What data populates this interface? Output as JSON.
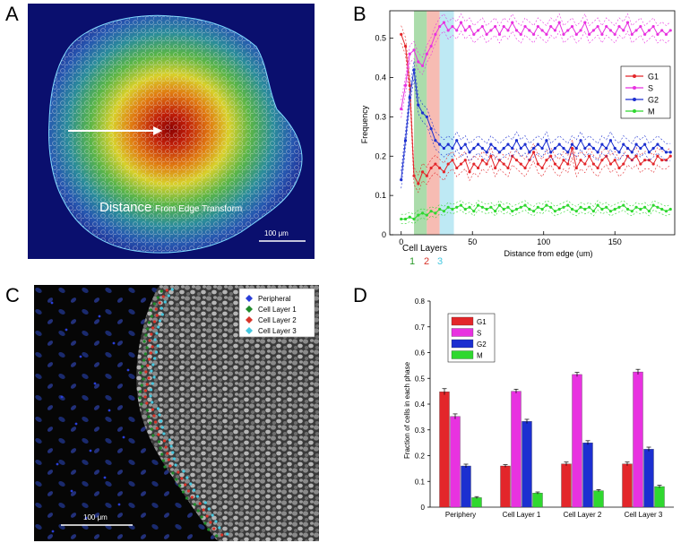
{
  "panels": {
    "a": "A",
    "b": "B",
    "c": "C",
    "d": "D"
  },
  "panel_a": {
    "label_big": "Distance",
    "label_small": " From Edge Transform",
    "scale_bar": "100 μm"
  },
  "panel_c": {
    "scale_bar": "100 μm",
    "legend": [
      {
        "label": "Peripheral",
        "color": "#2a3ed8"
      },
      {
        "label": "Cell Layer 1",
        "color": "#1f8a2a"
      },
      {
        "label": "Cell Layer 2",
        "color": "#d8342a"
      },
      {
        "label": "Cell Layer 3",
        "color": "#45c8e0"
      }
    ]
  },
  "colors": {
    "G1": "#e3262a",
    "S": "#e832e0",
    "G2": "#1c2fd0",
    "M": "#2fd82f"
  },
  "chart_data": [
    {
      "id": "B",
      "type": "line",
      "xlabel": "Distance from edge (um)",
      "ylabel": "Frequency",
      "xlim": [
        -8,
        192
      ],
      "ylim": [
        0,
        0.57
      ],
      "xticks": [
        "0",
        "50",
        "100",
        "150"
      ],
      "yticks": [
        "0",
        "0.1",
        "0.2",
        "0.3",
        "0.4",
        "0.5"
      ],
      "cell_layers_label": "Cell Layers",
      "cell_layer_numbers": [
        "1",
        "2",
        "3"
      ],
      "bands": [
        {
          "x0": 9,
          "x1": 18,
          "color": "#8fd08f"
        },
        {
          "x0": 18,
          "x1": 27,
          "color": "#f4a59a"
        },
        {
          "x0": 27,
          "x1": 37,
          "color": "#a8e2f0"
        }
      ],
      "x": [
        0,
        3,
        6,
        9,
        12,
        15,
        18,
        21,
        24,
        27,
        30,
        33,
        36,
        39,
        42,
        45,
        48,
        51,
        54,
        57,
        60,
        63,
        66,
        69,
        72,
        75,
        78,
        81,
        84,
        87,
        90,
        93,
        96,
        99,
        102,
        105,
        108,
        111,
        114,
        117,
        120,
        123,
        126,
        129,
        132,
        135,
        138,
        141,
        144,
        147,
        150,
        153,
        156,
        159,
        162,
        165,
        168,
        171,
        174,
        177,
        180,
        183,
        186,
        189
      ],
      "series": [
        {
          "name": "G1",
          "values": [
            0.51,
            0.48,
            0.38,
            0.15,
            0.13,
            0.16,
            0.15,
            0.17,
            0.18,
            0.17,
            0.16,
            0.18,
            0.19,
            0.17,
            0.18,
            0.19,
            0.16,
            0.18,
            0.17,
            0.19,
            0.18,
            0.2,
            0.17,
            0.19,
            0.18,
            0.17,
            0.2,
            0.19,
            0.18,
            0.17,
            0.19,
            0.21,
            0.18,
            0.17,
            0.19,
            0.2,
            0.18,
            0.17,
            0.19,
            0.18,
            0.22,
            0.17,
            0.19,
            0.18,
            0.2,
            0.18,
            0.17,
            0.19,
            0.2,
            0.18,
            0.19,
            0.17,
            0.18,
            0.2,
            0.19,
            0.2,
            0.18,
            0.19,
            0.19,
            0.18,
            0.2,
            0.19,
            0.19,
            0.2
          ]
        },
        {
          "name": "S",
          "values": [
            0.32,
            0.38,
            0.46,
            0.47,
            0.44,
            0.43,
            0.46,
            0.48,
            0.51,
            0.53,
            0.54,
            0.52,
            0.53,
            0.52,
            0.54,
            0.52,
            0.53,
            0.51,
            0.52,
            0.53,
            0.51,
            0.52,
            0.53,
            0.51,
            0.53,
            0.52,
            0.54,
            0.52,
            0.51,
            0.53,
            0.52,
            0.51,
            0.53,
            0.52,
            0.51,
            0.53,
            0.52,
            0.54,
            0.51,
            0.52,
            0.53,
            0.51,
            0.52,
            0.54,
            0.51,
            0.52,
            0.53,
            0.51,
            0.53,
            0.52,
            0.51,
            0.53,
            0.52,
            0.54,
            0.51,
            0.52,
            0.53,
            0.51,
            0.52,
            0.53,
            0.51,
            0.52,
            0.51,
            0.52
          ]
        },
        {
          "name": "G2",
          "values": [
            0.14,
            0.24,
            0.35,
            0.42,
            0.33,
            0.31,
            0.3,
            0.27,
            0.24,
            0.23,
            0.22,
            0.23,
            0.22,
            0.24,
            0.22,
            0.23,
            0.21,
            0.22,
            0.23,
            0.22,
            0.21,
            0.23,
            0.22,
            0.21,
            0.22,
            0.23,
            0.22,
            0.24,
            0.22,
            0.23,
            0.21,
            0.22,
            0.23,
            0.22,
            0.24,
            0.21,
            0.22,
            0.23,
            0.22,
            0.21,
            0.23,
            0.22,
            0.24,
            0.22,
            0.23,
            0.22,
            0.21,
            0.23,
            0.22,
            0.24,
            0.22,
            0.21,
            0.23,
            0.22,
            0.21,
            0.23,
            0.22,
            0.23,
            0.21,
            0.22,
            0.23,
            0.22,
            0.21,
            0.21
          ]
        },
        {
          "name": "M",
          "values": [
            0.04,
            0.04,
            0.045,
            0.04,
            0.05,
            0.055,
            0.05,
            0.06,
            0.055,
            0.065,
            0.06,
            0.07,
            0.065,
            0.07,
            0.075,
            0.065,
            0.07,
            0.06,
            0.075,
            0.07,
            0.065,
            0.07,
            0.06,
            0.075,
            0.065,
            0.07,
            0.06,
            0.065,
            0.07,
            0.075,
            0.065,
            0.06,
            0.07,
            0.065,
            0.075,
            0.07,
            0.06,
            0.065,
            0.07,
            0.075,
            0.065,
            0.06,
            0.07,
            0.065,
            0.07,
            0.06,
            0.075,
            0.065,
            0.07,
            0.06,
            0.065,
            0.07,
            0.075,
            0.065,
            0.06,
            0.07,
            0.065,
            0.07,
            0.06,
            0.075,
            0.07,
            0.065,
            0.06,
            0.065
          ]
        }
      ],
      "legend": [
        "G1",
        "S",
        "G2",
        "M"
      ]
    },
    {
      "id": "D",
      "type": "bar",
      "ylabel": "Fraction of cells in each phase",
      "ylim": [
        0,
        0.8
      ],
      "yticks": [
        "0",
        "0.1",
        "0.2",
        "0.3",
        "0.4",
        "0.5",
        "0.6",
        "0.7",
        "0.8"
      ],
      "categories": [
        "Periphery",
        "Cell Layer 1",
        "Cell Layer 2",
        "Cell Layer 3"
      ],
      "series": [
        {
          "name": "G1",
          "values": [
            0.448,
            0.16,
            0.168,
            0.168
          ],
          "errors": [
            0.012,
            0.005,
            0.007,
            0.007
          ]
        },
        {
          "name": "S",
          "values": [
            0.352,
            0.45,
            0.515,
            0.525
          ],
          "errors": [
            0.01,
            0.008,
            0.008,
            0.01
          ]
        },
        {
          "name": "G2",
          "values": [
            0.16,
            0.333,
            0.25,
            0.225
          ],
          "errors": [
            0.007,
            0.008,
            0.008,
            0.008
          ]
        },
        {
          "name": "M",
          "values": [
            0.037,
            0.055,
            0.064,
            0.08
          ],
          "errors": [
            0.004,
            0.004,
            0.004,
            0.005
          ]
        }
      ],
      "legend": [
        "G1",
        "S",
        "G2",
        "M"
      ]
    }
  ]
}
